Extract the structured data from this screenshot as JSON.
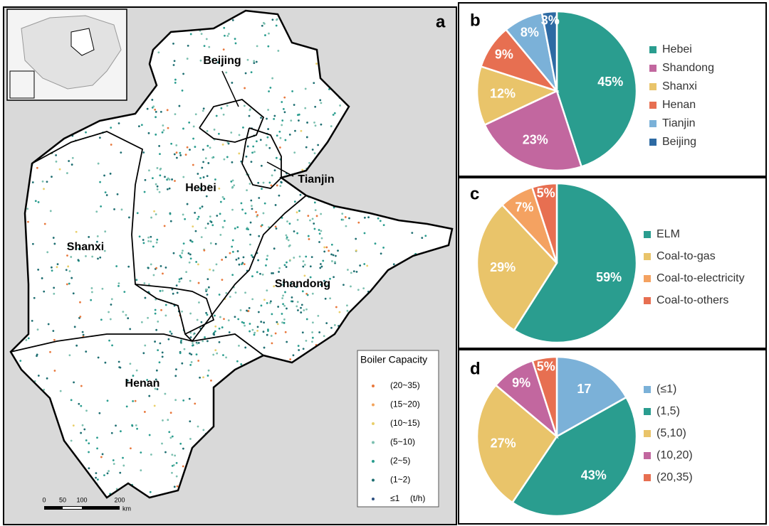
{
  "map": {
    "panel": "a",
    "labels": [
      "Beijing",
      "Tianjin",
      "Hebei",
      "Shanxi",
      "Shandong",
      "Henan"
    ],
    "legend_title": "Boiler Capacity",
    "legend": [
      "(20~35)",
      "(15~20)",
      "(10~15)",
      "(5~10)",
      "(2~5)",
      "(1~2)",
      "≤1"
    ],
    "legend_colors": [
      "#e8783c",
      "#f2a45c",
      "#e9cf6a",
      "#7cc0b0",
      "#2a9d8f",
      "#1f6f72",
      "#2c4f80"
    ],
    "unit": "(t/h)",
    "scale_labels": [
      "0",
      "50",
      "100",
      "200"
    ],
    "scale_unit": "km"
  },
  "chart_data": [
    {
      "type": "pie",
      "panel": "b",
      "categories": [
        "Hebei",
        "Shandong",
        "Shanxi",
        "Henan",
        "Tianjin",
        "Beijing"
      ],
      "values": [
        45,
        23,
        12,
        9,
        8,
        3
      ],
      "value_labels": [
        "45%",
        "23%",
        "12%",
        "9%",
        "8%",
        "3%"
      ],
      "colors": [
        "#2a9d8f",
        "#c2679f",
        "#e9c46a",
        "#e76f51",
        "#7bb1d8",
        "#2d6aa3"
      ]
    },
    {
      "type": "pie",
      "panel": "c",
      "categories": [
        "ELM",
        "Coal-to-gas",
        "Coal-to-electricity",
        "Coal-to-others"
      ],
      "values": [
        59,
        29,
        7,
        5
      ],
      "value_labels": [
        "59%",
        "29%",
        "7%",
        "5%"
      ],
      "colors": [
        "#2a9d8f",
        "#e9c46a",
        "#f4a261",
        "#e76f51"
      ]
    },
    {
      "type": "pie",
      "panel": "d",
      "categories": [
        "(≤1)",
        "(1,5)",
        "(5,10)",
        "(10,20)",
        "(20,35)"
      ],
      "values": [
        17,
        43,
        27,
        9,
        5
      ],
      "value_labels": [
        "17",
        "43%",
        "27%",
        "9%",
        "5%"
      ],
      "colors": [
        "#7bb1d8",
        "#2a9d8f",
        "#e9c46a",
        "#c2679f",
        "#e76f51"
      ]
    }
  ]
}
